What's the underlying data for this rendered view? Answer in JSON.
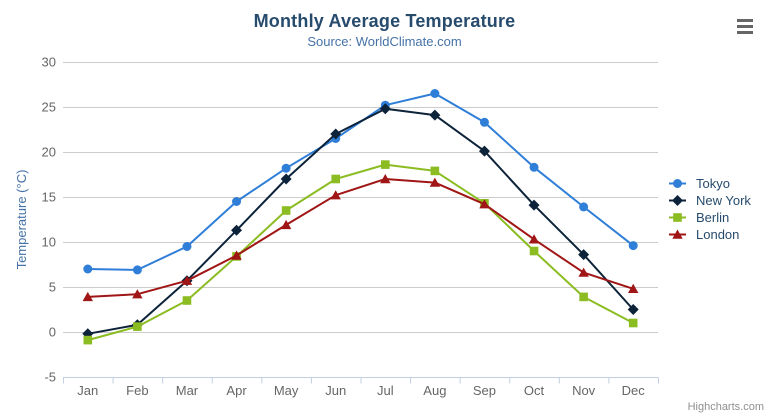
{
  "chart_data": {
    "type": "line",
    "title": "Monthly Average Temperature",
    "subtitle": "Source: WorldClimate.com",
    "categories": [
      "Jan",
      "Feb",
      "Mar",
      "Apr",
      "May",
      "Jun",
      "Jul",
      "Aug",
      "Sep",
      "Oct",
      "Nov",
      "Dec"
    ],
    "series": [
      {
        "name": "Tokyo",
        "color": "#2f7ed8",
        "marker": "circle",
        "values": [
          7.0,
          6.9,
          9.5,
          14.5,
          18.2,
          21.5,
          25.2,
          26.5,
          23.3,
          18.3,
          13.9,
          9.6
        ]
      },
      {
        "name": "New York",
        "color": "#0d233a",
        "marker": "diamond",
        "values": [
          -0.2,
          0.8,
          5.7,
          11.3,
          17.0,
          22.0,
          24.8,
          24.1,
          20.1,
          14.1,
          8.6,
          2.5
        ]
      },
      {
        "name": "Berlin",
        "color": "#8bbc21",
        "marker": "square",
        "values": [
          -0.9,
          0.6,
          3.5,
          8.4,
          13.5,
          17.0,
          18.6,
          17.9,
          14.3,
          9.0,
          3.9,
          1.0
        ]
      },
      {
        "name": "London",
        "color": "#a01515",
        "marker": "triangle",
        "values": [
          3.9,
          4.2,
          5.7,
          8.5,
          11.9,
          15.2,
          17.0,
          16.6,
          14.2,
          10.3,
          6.6,
          4.8
        ]
      }
    ],
    "xlabel": "",
    "ylabel": "Temperature (°C)",
    "ylim": [
      -5,
      30
    ],
    "ytick_step": 5,
    "grid": "horizontal-only",
    "legend_position": "right-middle",
    "style": {
      "axis_label_color": "#666666",
      "axis_line_color": "#c0d0e0",
      "gridline_color": "#cccccc",
      "y_title_color": "#4572a7",
      "legend_text_color": "#274b6d",
      "title_color": "#274b6d",
      "subtitle_color": "#4572a7"
    }
  },
  "credits": {
    "label": "Highcharts.com"
  }
}
